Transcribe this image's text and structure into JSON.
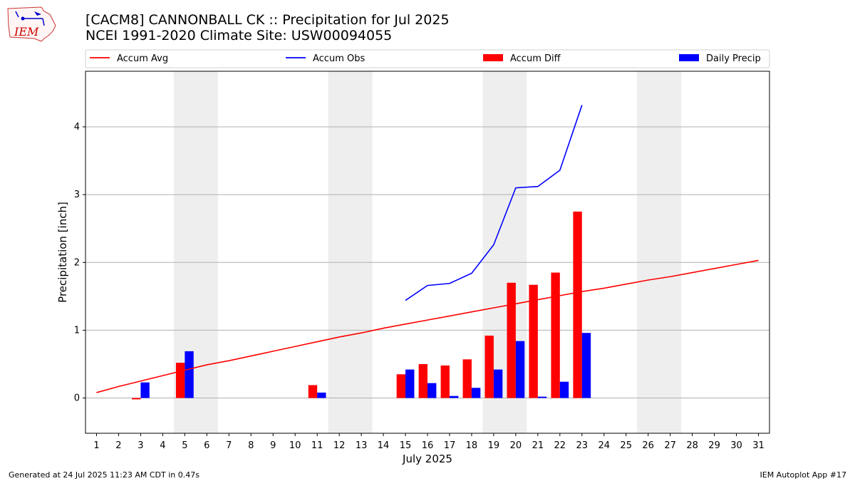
{
  "header": {
    "title_line1": "[CACM8] CANNONBALL CK :: Precipitation for Jul 2025",
    "title_line2": "NCEI 1991-2020 Climate Site: USW00094055",
    "logo_text": "IEM"
  },
  "footer": {
    "generated": "Generated at 24 Jul 2025 11:23 AM CDT in 0.47s",
    "app": "IEM Autoplot App #17"
  },
  "colors": {
    "accum_avg": "#ff0000",
    "accum_obs": "#0000ff",
    "accum_diff": "#ff0000",
    "daily_precip": "#0000ff",
    "weekend_shade": "#eeeeee",
    "grid": "#b0b0b0"
  },
  "chart_data": {
    "type": "bar",
    "xlabel": "July 2025",
    "ylabel": "Precipitation [inch]",
    "xlim": [
      0.5,
      31.5
    ],
    "ylim": [
      -0.52,
      4.82
    ],
    "yticks": [
      0,
      1,
      2,
      3,
      4
    ],
    "x": [
      1,
      2,
      3,
      4,
      5,
      6,
      7,
      8,
      9,
      10,
      11,
      12,
      13,
      14,
      15,
      16,
      17,
      18,
      19,
      20,
      21,
      22,
      23,
      24,
      25,
      26,
      27,
      28,
      29,
      30,
      31
    ],
    "weekend_shading": [
      [
        4.5,
        6.5
      ],
      [
        11.5,
        13.5
      ],
      [
        18.5,
        20.5
      ],
      [
        25.5,
        27.5
      ]
    ],
    "grid": "horizontal",
    "legend_position": "top",
    "legend": [
      "Accum Avg",
      "Accum Obs",
      "Accum Diff",
      "Daily Precip"
    ],
    "series": [
      {
        "name": "Accum Avg",
        "type": "line",
        "x": [
          1,
          2,
          3,
          4,
          5,
          6,
          7,
          8,
          9,
          10,
          11,
          12,
          13,
          14,
          15,
          16,
          17,
          18,
          19,
          20,
          21,
          22,
          23,
          24,
          25,
          26,
          27,
          28,
          29,
          30,
          31
        ],
        "values": [
          0.08,
          0.17,
          0.25,
          0.33,
          0.41,
          0.49,
          0.55,
          0.62,
          0.69,
          0.76,
          0.83,
          0.9,
          0.96,
          1.03,
          1.09,
          1.15,
          1.21,
          1.27,
          1.33,
          1.39,
          1.45,
          1.51,
          1.57,
          1.62,
          1.68,
          1.74,
          1.79,
          1.85,
          1.91,
          1.97,
          2.03
        ]
      },
      {
        "name": "Accum Obs",
        "type": "line",
        "x": [
          15,
          16,
          17,
          18,
          19,
          20,
          21,
          22,
          23
        ],
        "values": [
          1.44,
          1.66,
          1.69,
          1.84,
          2.26,
          3.1,
          3.12,
          3.36,
          4.32
        ]
      },
      {
        "name": "Accum Diff",
        "type": "bar",
        "x": [
          3,
          5,
          11,
          15,
          16,
          17,
          18,
          19,
          20,
          21,
          22,
          23
        ],
        "values": [
          -0.02,
          0.52,
          0.19,
          0.35,
          0.5,
          0.48,
          0.57,
          0.92,
          1.7,
          1.67,
          1.85,
          2.75
        ]
      },
      {
        "name": "Daily Precip",
        "type": "bar",
        "x": [
          3,
          5,
          11,
          15,
          16,
          17,
          18,
          19,
          20,
          21,
          22,
          23
        ],
        "values": [
          0.23,
          0.69,
          0.08,
          0.42,
          0.22,
          0.03,
          0.15,
          0.42,
          0.84,
          0.02,
          0.24,
          0.96
        ]
      }
    ]
  }
}
